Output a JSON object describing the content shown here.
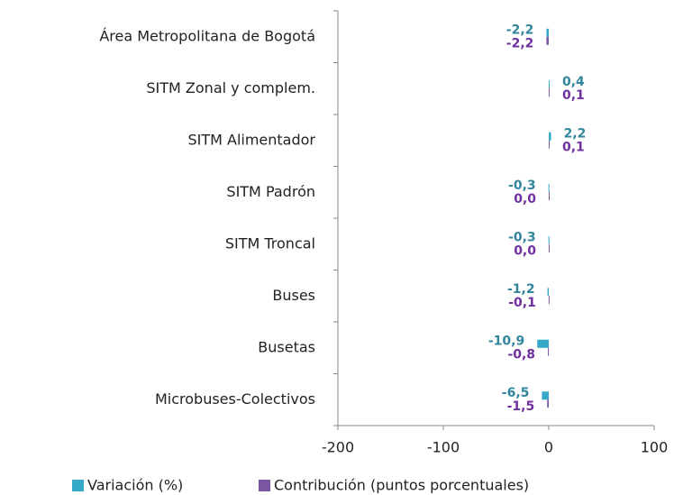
{
  "chart_data": {
    "type": "hbar",
    "categories": [
      "Área Metropolitana de Bogotá",
      "SITM Zonal y complem.",
      "SITM Alimentador",
      "SITM Padrón",
      "SITM Troncal",
      "Buses",
      "Busetas",
      "Microbuses-Colectivos"
    ],
    "series": [
      {
        "name": "Variación (%)",
        "color": "#34a9c8",
        "label_color": "#31859c",
        "values": [
          -2.2,
          0.4,
          2.2,
          -0.3,
          -0.3,
          -1.2,
          -10.9,
          -6.5
        ],
        "value_labels": [
          "-2,2",
          "0,4",
          "2,2",
          "-0,3",
          "-0,3",
          "-1,2",
          "-10,9",
          "-6,5"
        ]
      },
      {
        "name": "Contribución (puntos porcentuales)",
        "color": "#7a57a0",
        "label_color": "#7030a0",
        "values": [
          -2.2,
          0.1,
          0.1,
          0.0,
          0.0,
          -0.1,
          -0.8,
          -1.5
        ],
        "value_labels": [
          "-2,2",
          "0,1",
          "0,1",
          "0,0",
          "0,0",
          "-0,1",
          "-0,8",
          "-1,5"
        ]
      }
    ],
    "xlim": [
      -200,
      100
    ],
    "xticks": [
      -200,
      -100,
      0,
      100
    ],
    "legend": "bottom"
  }
}
